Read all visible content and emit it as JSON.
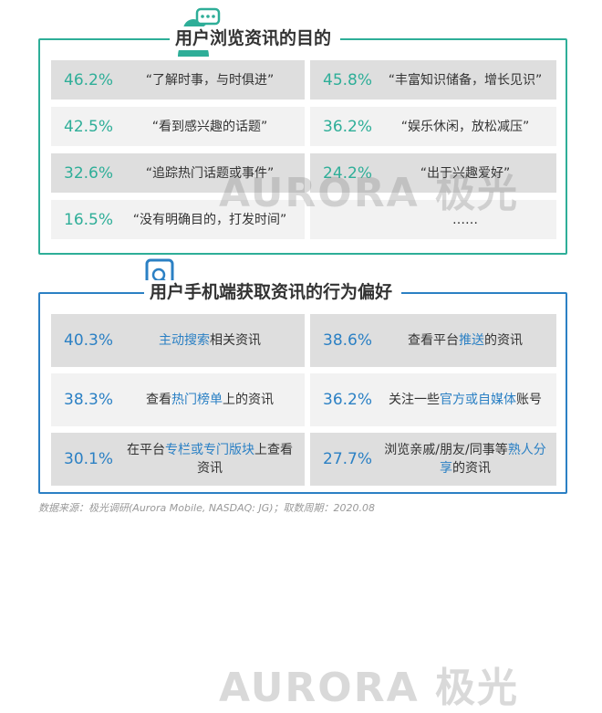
{
  "chart_data": [
    {
      "type": "table",
      "title": "用户浏览资讯的目的",
      "rows": [
        {
          "value": "46.2%",
          "label": "“了解时事，与时俱进”"
        },
        {
          "value": "45.8%",
          "label": "“丰富知识储备，增长见识”"
        },
        {
          "value": "42.5%",
          "label": "“看到感兴趣的话题”"
        },
        {
          "value": "36.2%",
          "label": "“娱乐休闲，放松减压”"
        },
        {
          "value": "32.6%",
          "label": "“追踪热门话题或事件”"
        },
        {
          "value": "24.2%",
          "label": "“出于兴趣爱好”"
        },
        {
          "value": "16.5%",
          "label": "“没有明确目的，打发时间”"
        },
        {
          "value": "",
          "label": "……"
        }
      ]
    },
    {
      "type": "table",
      "title": "用户手机端获取资讯的行为偏好",
      "rows": [
        {
          "value": "40.3%",
          "label": "主动搜索相关资讯",
          "parts": [
            {
              "text": "主动搜索",
              "hl": true
            },
            {
              "text": "相关资讯",
              "hl": false
            }
          ]
        },
        {
          "value": "38.6%",
          "label": "查看平台推送的资讯",
          "parts": [
            {
              "text": "查看平台",
              "hl": false
            },
            {
              "text": "推送",
              "hl": true
            },
            {
              "text": "的资讯",
              "hl": false
            }
          ]
        },
        {
          "value": "38.3%",
          "label": "查看热门榜单上的资讯",
          "parts": [
            {
              "text": "查看",
              "hl": false
            },
            {
              "text": "热门榜单",
              "hl": true
            },
            {
              "text": "上的资讯",
              "hl": false
            }
          ]
        },
        {
          "value": "36.2%",
          "label": "关注一些官方或自媒体账号",
          "parts": [
            {
              "text": "关注一些",
              "hl": false
            },
            {
              "text": "官方或自媒体",
              "hl": true
            },
            {
              "text": "账号",
              "hl": false
            }
          ]
        },
        {
          "value": "30.1%",
          "label": "在平台专栏或专门版块上查看资讯",
          "parts": [
            {
              "text": "在平台",
              "hl": false
            },
            {
              "text": "专栏或专门版块",
              "hl": true
            },
            {
              "text": "上查看资讯",
              "hl": false
            }
          ]
        },
        {
          "value": "27.7%",
          "label": "浏览亲戚/朋友/同事等熟人分享的资讯",
          "parts": [
            {
              "text": "浏览亲戚/朋友/同事等",
              "hl": false
            },
            {
              "text": "熟人分享",
              "hl": true
            },
            {
              "text": "的资讯",
              "hl": false
            }
          ]
        }
      ]
    }
  ],
  "watermark": "AURORA 极光",
  "footer": "数据来源：极光调研(Aurora Mobile, NASDAQ: JG)；取数周期：2020.08",
  "colors": {
    "section1": "#2eae98",
    "section2": "#2b80c4",
    "highlight": "#2b80c4"
  },
  "icons": {
    "section1": "person-chat-icon",
    "section2": "phone-search-icon"
  }
}
